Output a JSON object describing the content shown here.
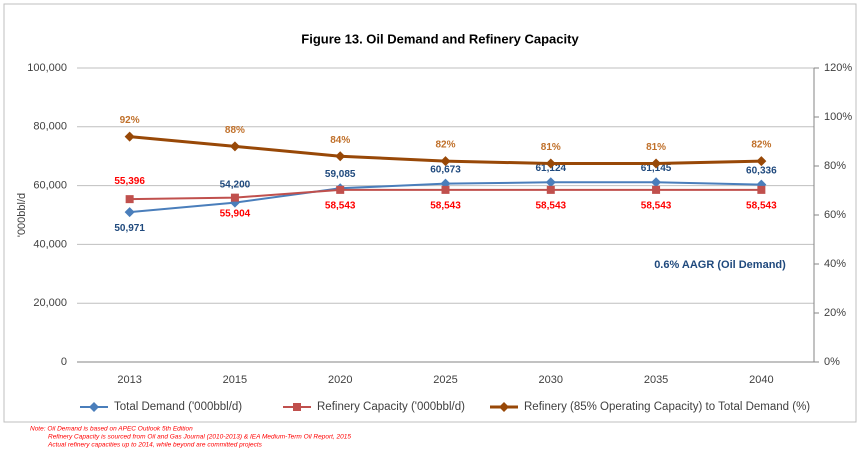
{
  "chart_data": {
    "type": "line",
    "title": "Figure 13. Oil Demand and Refinery Capacity",
    "y_label": "'000bbl/d",
    "annotation": "0.6% AAGR  (Oil Demand)",
    "categories": [
      "2013",
      "2015",
      "2020",
      "2025",
      "2030",
      "2035",
      "2040"
    ],
    "ylim": [
      0,
      100000
    ],
    "yticks": [
      0,
      {
        "value": 20000,
        "label": "20,000"
      },
      {
        "value": 40000,
        "label": "40,000"
      },
      {
        "value": 60000,
        "label": "60,000"
      },
      {
        "value": 80000,
        "label": "80,000"
      },
      {
        "value": 100000,
        "label": "100,000"
      }
    ],
    "y2lim": [
      0,
      120
    ],
    "y2ticks": [
      {
        "value": 0,
        "label": "0%"
      },
      {
        "value": 20,
        "label": "20%"
      },
      {
        "value": 40,
        "label": "40%"
      },
      {
        "value": 60,
        "label": "60%"
      },
      {
        "value": 80,
        "label": "80%"
      },
      {
        "value": 100,
        "label": "100%"
      },
      {
        "value": 120,
        "label": "120%"
      }
    ],
    "grid": true,
    "legend": "bottom",
    "series": [
      {
        "name": "Total Demand ('000bbl/d)",
        "color": "#4a7ebb",
        "marker": "diamond",
        "values": [
          50971,
          54200,
          59085,
          60673,
          61124,
          61145,
          60336
        ],
        "value_labels": [
          "50,971",
          "54,200",
          "59,085",
          "60,673",
          "61,124",
          "61,145",
          "60,336"
        ]
      },
      {
        "name": "Refinery Capacity  ('000bbl/d)",
        "color": "#c0504d",
        "marker": "square",
        "values": [
          55396,
          55904,
          58543,
          58543,
          58543,
          58543,
          58543
        ],
        "value_labels": [
          "55,396",
          "55,904",
          "58,543",
          "58,543",
          "58,543",
          "58,543",
          "58,543"
        ]
      },
      {
        "name": "Refinery (85% Operating Capacity) to Total Demand (%)",
        "color": "#984807",
        "marker": "diamond",
        "axis": "y2",
        "values": [
          92,
          88,
          84,
          82,
          81,
          81,
          82
        ],
        "value_labels": [
          "92%",
          "88%",
          "84%",
          "82%",
          "81%",
          "81%",
          "82%"
        ]
      }
    ],
    "notes": [
      "Note: Oil Demand is based on APEC Outlook 5th Edition",
      "Refinery Capacity is sourced from Oil and Gas Journal (2010-2013) & IEA Medium-Term Oil Report, 2015",
      "Actual refinery capacities up to 2014, while beyond are committed projects"
    ]
  }
}
